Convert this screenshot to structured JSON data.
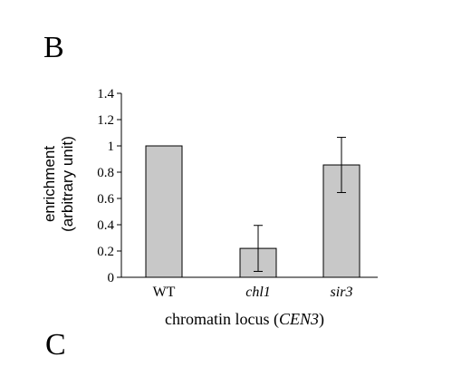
{
  "panels": {
    "top_letter": "B",
    "bottom_letter": "C"
  },
  "chart_data": {
    "type": "bar",
    "categories": [
      "WT",
      "chl1",
      "sir3"
    ],
    "category_italic": [
      false,
      true,
      true
    ],
    "values": [
      1.0,
      0.22,
      0.855
    ],
    "errors": [
      null,
      0.175,
      0.21
    ],
    "ylim": [
      0,
      1.4
    ],
    "yticks": [
      "0",
      "0.2",
      "0.4",
      "0.6",
      "0.8",
      "1",
      "1.2",
      "1.4"
    ],
    "ylabel_line1": "enrichment",
    "ylabel_line2": "(arbitrary unit)",
    "xlabel_prefix": "chromatin locus (",
    "xlabel_italic": "CEN3",
    "xlabel_suffix": ")",
    "bar_color": "#c8c8c8",
    "grid": false,
    "legend": "none"
  }
}
